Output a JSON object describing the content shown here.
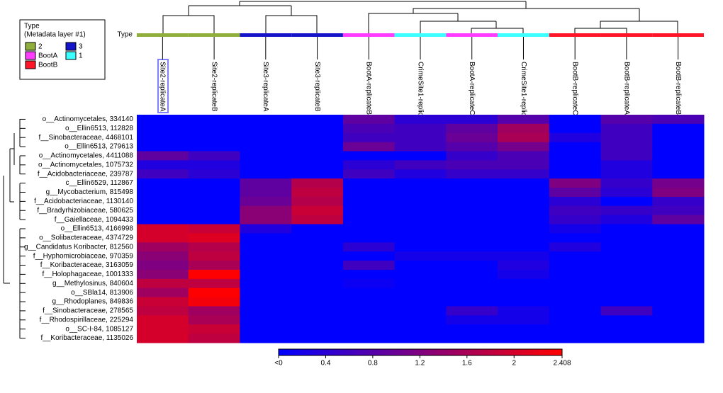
{
  "chart_data": {
    "type": "heatmap",
    "type_label": "Type",
    "legend": {
      "title": "Type",
      "subtitle": "(Metadata layer #1)",
      "items": [
        {
          "name": "2",
          "color": "#8faf3a"
        },
        {
          "name": "3",
          "color": "#1414c8"
        },
        {
          "name": "BootA",
          "color": "#ff3cff"
        },
        {
          "name": "1",
          "color": "#3cffff"
        },
        {
          "name": "BootB",
          "color": "#ff1428"
        }
      ]
    },
    "columns": [
      "Site2-replicateA",
      "Site2-replicateB",
      "Site3-replicateA",
      "Site3-replicateB",
      "BootA-replicateB",
      "CrimeSite1-replicateB",
      "BootA-replicateC",
      "CrimeSite1-replicateA",
      "BootB-replicateC",
      "BootB-replicateA",
      "BootB-replicateB"
    ],
    "column_types": [
      "2",
      "2",
      "3",
      "3",
      "BootA",
      "1",
      "BootA",
      "1",
      "BootB",
      "BootB",
      "BootB"
    ],
    "rows": [
      "o__Actinomycetales, 334140",
      "o__Ellin6513, 112828",
      "f__Sinobacteraceae, 4468101",
      "o__Ellin6513, 279613",
      "o__Actinomycetales, 4411088",
      "o__Actinomycetales, 1075732",
      "f__Acidobacteriaceae, 239787",
      "c__Ellin6529, 112867",
      "g__Mycobacterium, 815498",
      "f__Acidobacteriaceae, 1130140",
      "f__Bradyrhizobiaceae, 580625",
      "f__Gaiellaceae, 1094433",
      "o__Ellin6513, 4166998",
      "o__Solibacteraceae, 4374729",
      "g__Candidatus Koribacter, 812560",
      "f__Hyphomicrobiaceae, 970359",
      "f__Koribacteraceae, 3163059",
      "f__Holophagaceae, 1001333",
      "g__Methylosinus, 840604",
      "o__SBla14, 813906",
      "g__Rhodoplanes, 849836",
      "f__Sinobacteraceae, 278565",
      "f__Rhodospirillaceae, 225294",
      "o__SC-I-84, 1085127",
      "f__Koribacteraceae, 1135026"
    ],
    "values": [
      [
        0,
        0,
        0,
        0,
        0.9,
        0.4,
        0.4,
        0.8,
        0,
        0.8,
        0.7
      ],
      [
        0,
        0,
        0,
        0,
        0.7,
        0.6,
        0.9,
        1.5,
        0,
        0.6,
        0
      ],
      [
        0,
        0,
        0,
        0,
        0.6,
        0.6,
        1.0,
        1.6,
        0.3,
        0.6,
        0
      ],
      [
        0,
        0,
        0,
        0,
        1.0,
        0.6,
        0.8,
        1.1,
        0,
        0.6,
        0
      ],
      [
        0.9,
        0.6,
        0,
        0,
        0,
        0,
        0.5,
        0.7,
        0,
        0.6,
        0
      ],
      [
        0.3,
        0.3,
        0,
        0,
        0.4,
        0.6,
        0.7,
        0.7,
        0,
        0.3,
        0
      ],
      [
        0.6,
        0.4,
        0,
        0,
        0.6,
        0.3,
        0.5,
        0.5,
        0,
        0.3,
        0
      ],
      [
        0,
        0,
        0.9,
        1.7,
        0,
        0,
        0,
        0,
        1.2,
        0.5,
        1.1
      ],
      [
        0,
        0,
        0.9,
        1.8,
        0,
        0,
        0,
        0,
        0.9,
        0.4,
        1.2
      ],
      [
        0,
        0,
        1.0,
        1.7,
        0,
        0,
        0,
        0,
        0.4,
        0,
        0.5
      ],
      [
        0,
        0,
        1.3,
        1.9,
        0,
        0,
        0,
        0,
        0.6,
        0.5,
        0.6
      ],
      [
        0,
        0,
        1.3,
        1.8,
        0,
        0,
        0,
        0,
        0.5,
        0.3,
        0.9
      ],
      [
        2.0,
        1.9,
        0.3,
        0,
        0,
        0,
        0,
        0,
        0.2,
        0,
        0
      ],
      [
        2.0,
        2.1,
        0,
        0,
        0,
        0,
        0,
        0,
        0,
        0,
        0
      ],
      [
        1.5,
        1.7,
        0,
        0,
        0.4,
        0,
        0,
        0,
        0.3,
        0,
        0
      ],
      [
        1.3,
        1.8,
        0,
        0,
        0,
        0.2,
        0.2,
        0.2,
        0,
        0,
        0
      ],
      [
        1.2,
        1.6,
        0,
        0,
        0.6,
        0,
        0,
        0.3,
        0,
        0,
        0
      ],
      [
        1.3,
        2.4,
        0,
        0,
        0,
        0,
        0,
        0.2,
        0,
        0,
        0
      ],
      [
        1.8,
        1.8,
        0,
        0,
        0.1,
        0,
        0,
        0,
        0,
        0,
        0
      ],
      [
        1.5,
        2.4,
        0,
        0,
        0,
        0,
        0,
        0,
        0,
        0,
        0
      ],
      [
        1.9,
        2.3,
        0,
        0,
        0,
        0,
        0,
        0,
        0,
        0,
        0
      ],
      [
        1.8,
        1.5,
        0,
        0,
        0,
        0,
        0.5,
        0.2,
        0,
        0.6,
        0
      ],
      [
        2.0,
        1.6,
        0,
        0,
        0,
        0,
        0.2,
        0.2,
        0,
        0,
        0
      ],
      [
        2.0,
        1.9,
        0,
        0,
        0,
        0,
        0,
        0,
        0,
        0,
        0
      ],
      [
        2.0,
        1.8,
        0,
        0,
        0,
        0,
        0,
        0,
        0,
        0,
        0
      ]
    ],
    "colorscale": [
      "#0000ff",
      "#ff0000"
    ],
    "zlim": [
      0,
      2.408
    ],
    "zticks": [
      {
        "value": 0,
        "label": "<0"
      },
      0.4,
      0.8,
      1.2,
      1.6,
      2,
      2.408
    ]
  }
}
